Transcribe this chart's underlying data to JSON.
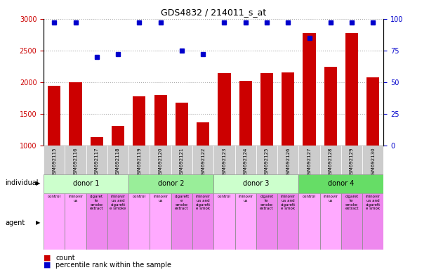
{
  "title": "GDS4832 / 214011_s_at",
  "samples": [
    "GSM692115",
    "GSM692116",
    "GSM692117",
    "GSM692118",
    "GSM692119",
    "GSM692120",
    "GSM692121",
    "GSM692122",
    "GSM692123",
    "GSM692124",
    "GSM692125",
    "GSM692126",
    "GSM692127",
    "GSM692128",
    "GSM692129",
    "GSM692130"
  ],
  "counts": [
    1950,
    2000,
    1140,
    1310,
    1780,
    1800,
    1680,
    1370,
    2150,
    2020,
    2140,
    2160,
    2780,
    2240,
    2780,
    2080
  ],
  "percentiles": [
    97,
    97,
    70,
    72,
    97,
    97,
    75,
    72,
    97,
    97,
    97,
    97,
    85,
    97,
    97,
    97
  ],
  "ylim_left": [
    1000,
    3000
  ],
  "ylim_right": [
    0,
    100
  ],
  "yticks_left": [
    1000,
    1500,
    2000,
    2500,
    3000
  ],
  "yticks_right": [
    0,
    25,
    50,
    75,
    100
  ],
  "bar_color": "#cc0000",
  "dot_color": "#0000cc",
  "grid_color": "#aaaaaa",
  "donors": [
    {
      "label": "donor 1",
      "start": 0,
      "end": 4,
      "color": "#ccffcc"
    },
    {
      "label": "donor 2",
      "start": 4,
      "end": 8,
      "color": "#99ee99"
    },
    {
      "label": "donor 3",
      "start": 8,
      "end": 12,
      "color": "#ccffcc"
    },
    {
      "label": "donor 4",
      "start": 12,
      "end": 16,
      "color": "#66dd66"
    }
  ],
  "agents": [
    {
      "label": "control",
      "color": "#ffaaff"
    },
    {
      "label": "rhinovir\nus",
      "color": "#ffaaff"
    },
    {
      "label": "cigaret\nte\nsmoke\nextract",
      "color": "#ee88ee"
    },
    {
      "label": "rhinovir\nus and\ncigarett\ne smoke",
      "color": "#ee88ee"
    },
    {
      "label": "control",
      "color": "#ffaaff"
    },
    {
      "label": "rhinovir\nus",
      "color": "#ffaaff"
    },
    {
      "label": "cigarett\ne\nsmoke\nextract",
      "color": "#ee88ee"
    },
    {
      "label": "rhinovir\nus and\ncigarett\ne smok",
      "color": "#ee88ee"
    },
    {
      "label": "control",
      "color": "#ffaaff"
    },
    {
      "label": "rhinovir\nus",
      "color": "#ffaaff"
    },
    {
      "label": "cigaret\nte\nsmoke\nextract",
      "color": "#ee88ee"
    },
    {
      "label": "rhinovir\nus and\ncigarett\ne smok",
      "color": "#ee88ee"
    },
    {
      "label": "control",
      "color": "#ffaaff"
    },
    {
      "label": "rhinovir\nus",
      "color": "#ffaaff"
    },
    {
      "label": "cigaret\nte\nsmoke\nextract",
      "color": "#ee88ee"
    },
    {
      "label": "rhinovir\nus and\ncigarett\ne smok",
      "color": "#ee88ee"
    }
  ],
  "legend_count_color": "#cc0000",
  "legend_pct_color": "#0000cc",
  "xlabel_individual": "individual",
  "xlabel_agent": "agent",
  "tick_label_color_left": "#cc0000",
  "tick_label_color_right": "#0000cc"
}
